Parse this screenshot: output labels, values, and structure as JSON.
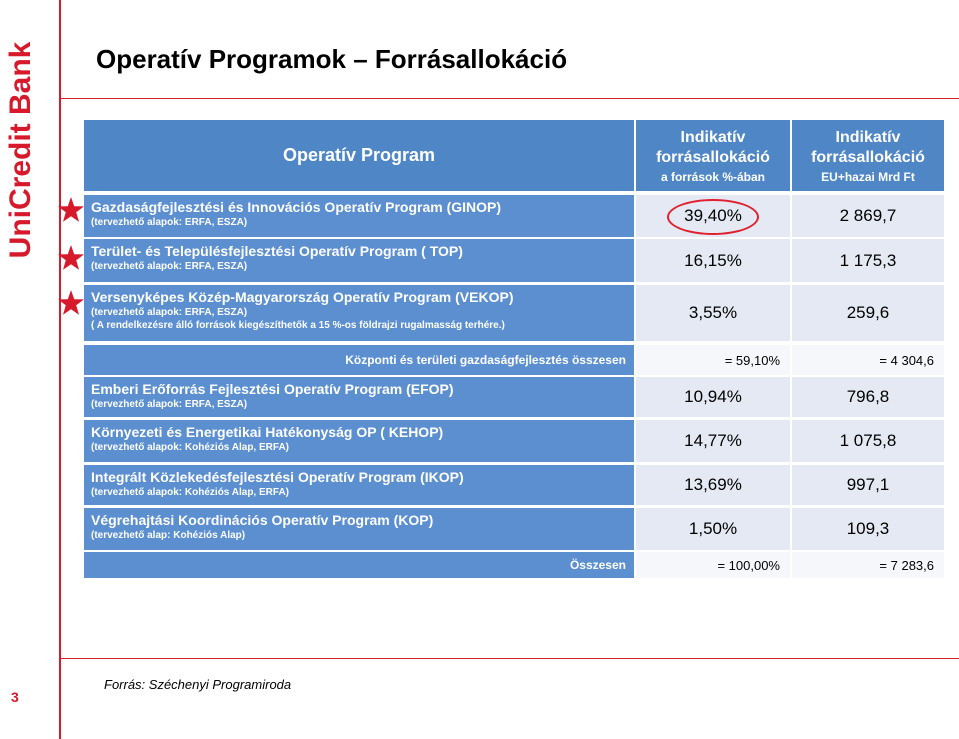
{
  "brand": {
    "logo_text": "UniCredit Bank",
    "accent": "#d7192c"
  },
  "slide": {
    "title": "Operatív Programok – Forrásallokáció",
    "page_number": "3",
    "source": "Forrás: Széchenyi Programiroda"
  },
  "table": {
    "header": {
      "program": "Operatív Program",
      "col1_title": "Indikatív forrásallokáció",
      "col1_sub": "a források %-ában",
      "col2_title": "Indikatív forrásallokáció",
      "col2_sub": "EU+hazai Mrd Ft"
    },
    "rows": [
      {
        "name": "Gazdaságfejlesztési és Innovációs Operatív Program (GINOP)",
        "note": "(tervezhető alapok: ERFA, ESZA)",
        "note2": "",
        "pct": "39,40%",
        "amount": "2 869,7"
      },
      {
        "name": "Terület- és Településfejlesztési Operatív Program ( TOP)",
        "note": "(tervezhető alapok: ERFA, ESZA)",
        "note2": "",
        "pct": "16,15%",
        "amount": "1 175,3"
      },
      {
        "name": "Versenyképes Közép-Magyarország Operatív Program (VEKOP)",
        "note": "(tervezhető alapok: ERFA, ESZA)",
        "note2": "( A rendelkezésre álló források kiegészíthetők a 15 %-os földrajzi rugalmasság terhére.)",
        "pct": "3,55%",
        "amount": "259,6"
      },
      {
        "name": "Emberi Erőforrás Fejlesztési Operatív Program (EFOP)",
        "note": "(tervezhető alapok: ERFA, ESZA)",
        "note2": "",
        "pct": "10,94%",
        "amount": "796,8"
      },
      {
        "name": "Környezeti és Energetikai Hatékonyság OP ( KEHOP)",
        "note": "(tervezhető alapok: Kohéziós Alap, ERFA)",
        "note2": "",
        "pct": "14,77%",
        "amount": "1 075,8"
      },
      {
        "name": "Integrált Közlekedésfejlesztési Operatív Program (IKOP)",
        "note": "(tervezhető alapok: Kohéziós Alap, ERFA)",
        "note2": "",
        "pct": "13,69%",
        "amount": "997,1"
      },
      {
        "name": "Végrehajtási Koordinációs Operatív Program (KOP)",
        "note": "(tervezhető alap: Kohéziós Alap)",
        "note2": "",
        "pct": "1,50%",
        "amount": "109,3"
      }
    ],
    "subtotal": {
      "label": "Központi és területi gazdaságfejlesztés összesen",
      "pct": "= 59,10%",
      "amount": "= 4 304,6"
    },
    "total": {
      "label": "Összesen",
      "pct": "= 100,00%",
      "amount": "= 7 283,6"
    }
  },
  "markers": {
    "star_icon": "star-icon",
    "star_color": "#d7192c",
    "highlight_color": "#e0202e"
  }
}
